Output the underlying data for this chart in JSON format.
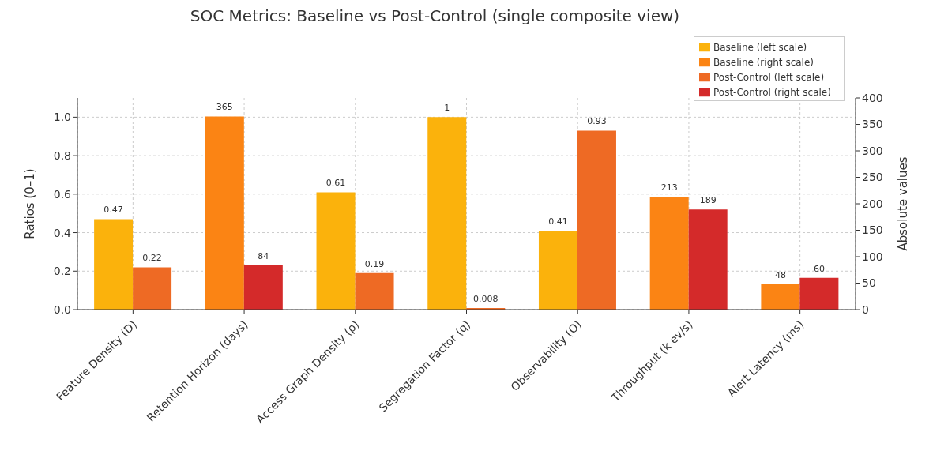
{
  "chart_data": {
    "type": "bar",
    "title": "SOC Metrics: Baseline vs Post-Control (single composite view)",
    "categories": [
      "Feature Density (D)",
      "Retention Horizon (days)",
      "Access Graph Density (ρ)",
      "Segregation Factor (q)",
      "Observability (O)",
      "Throughput (k ev/s)",
      "Alert Latency (ms)"
    ],
    "series": [
      {
        "name": "Baseline (left scale)",
        "color": "#fbb20c",
        "values": [
          0.47,
          null,
          0.61,
          1,
          0.41,
          null,
          null
        ]
      },
      {
        "name": "Post-Control (left scale)",
        "color": "#ee6a24",
        "values": [
          0.22,
          null,
          0.19,
          0.008,
          0.93,
          null,
          null
        ]
      },
      {
        "name": "Baseline (right scale)",
        "color": "#fb8414",
        "axis": "y2",
        "values": [
          null,
          365,
          null,
          null,
          null,
          213,
          48
        ]
      },
      {
        "name": "Post-Control (right scale)",
        "color": "#d42a2a",
        "axis": "y2",
        "values": [
          null,
          84,
          null,
          null,
          null,
          189,
          60
        ]
      }
    ],
    "ylabel": "Ratios (0–1)",
    "y2label": "Absolute values",
    "ylim": [
      0,
      1.1
    ],
    "yticks": [
      {
        "value": 0,
        "label": "0.0"
      },
      {
        "value": 0.2,
        "label": "0.2"
      },
      {
        "value": 0.4,
        "label": "0.4"
      },
      {
        "value": 0.6,
        "label": "0.6"
      },
      {
        "value": 0.8,
        "label": "0.8"
      },
      {
        "value": 1,
        "label": "1.0"
      }
    ],
    "y2lim": [
      0,
      400
    ],
    "y2ticks": [
      0,
      50,
      100,
      150,
      200,
      250,
      300,
      350,
      400
    ],
    "data_labels": true,
    "grid": true,
    "legend": "top right"
  }
}
